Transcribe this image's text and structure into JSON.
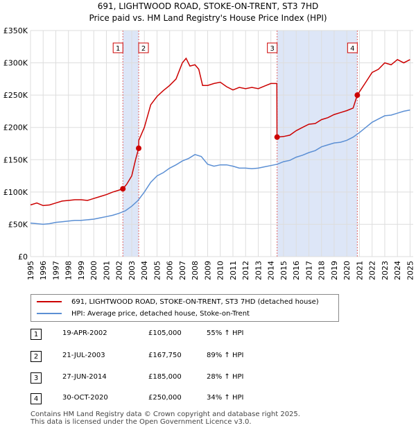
{
  "title": {
    "line1": "691, LIGHTWOOD ROAD, STOKE-ON-TRENT, ST3 7HD",
    "line2": "Price paid vs. HM Land Registry's House Price Index (HPI)"
  },
  "chart_data": {
    "type": "line",
    "xlim": [
      1995,
      2025.25
    ],
    "ylim": [
      0,
      350000
    ],
    "y_ticks": [
      {
        "value": 0,
        "label": "£0"
      },
      {
        "value": 50000,
        "label": "£50K"
      },
      {
        "value": 100000,
        "label": "£100K"
      },
      {
        "value": 150000,
        "label": "£150K"
      },
      {
        "value": 200000,
        "label": "£200K"
      },
      {
        "value": 250000,
        "label": "£250K"
      },
      {
        "value": 300000,
        "label": "£300K"
      },
      {
        "value": 350000,
        "label": "£350K"
      }
    ],
    "x_ticks": [
      "1995",
      "1996",
      "1997",
      "1998",
      "1999",
      "2000",
      "2001",
      "2002",
      "2003",
      "2004",
      "2005",
      "2006",
      "2007",
      "2008",
      "2009",
      "2010",
      "2011",
      "2012",
      "2013",
      "2014",
      "2015",
      "2016",
      "2017",
      "2018",
      "2019",
      "2020",
      "2021",
      "2022",
      "2023",
      "2024",
      "2025"
    ],
    "grid": true,
    "series": [
      {
        "name": "691, LIGHTWOOD ROAD, STOKE-ON-TRENT, ST3 7HD (detached house)",
        "color": "#cc0000",
        "x": [
          1995.0,
          1995.5,
          1996.0,
          1996.5,
          1997.0,
          1997.5,
          1998.0,
          1998.5,
          1999.0,
          1999.5,
          2000.0,
          2000.5,
          2001.0,
          2001.5,
          2002.0,
          2002.3,
          2002.6,
          2003.0,
          2003.3,
          2003.55,
          2003.56,
          2004.0,
          2004.5,
          2005.0,
          2005.5,
          2006.0,
          2006.5,
          2007.0,
          2007.3,
          2007.6,
          2008.0,
          2008.3,
          2008.6,
          2009.0,
          2009.5,
          2010.0,
          2010.5,
          2011.0,
          2011.5,
          2012.0,
          2012.5,
          2013.0,
          2013.5,
          2014.0,
          2014.47,
          2014.48,
          2015.0,
          2015.5,
          2016.0,
          2016.5,
          2017.0,
          2017.5,
          2018.0,
          2018.5,
          2019.0,
          2019.5,
          2020.0,
          2020.5,
          2020.83,
          2021.0,
          2021.5,
          2022.0,
          2022.5,
          2023.0,
          2023.5,
          2024.0,
          2024.5,
          2025.0
        ],
        "values": [
          80000,
          83000,
          79000,
          80000,
          83000,
          86000,
          87000,
          88000,
          88000,
          87000,
          90000,
          93000,
          96000,
          100000,
          103000,
          105000,
          112000,
          125000,
          150000,
          167750,
          180000,
          200000,
          235000,
          248000,
          257000,
          265000,
          275000,
          300000,
          307000,
          295000,
          297000,
          290000,
          265000,
          265000,
          268000,
          270000,
          263000,
          258000,
          262000,
          260000,
          262000,
          260000,
          264000,
          268000,
          268000,
          185000,
          186000,
          188000,
          195000,
          200000,
          205000,
          206000,
          212000,
          215000,
          220000,
          223000,
          226000,
          230000,
          250000,
          255000,
          270000,
          285000,
          290000,
          300000,
          297000,
          305000,
          300000,
          305000
        ]
      },
      {
        "name": "HPI: Average price, detached house, Stoke-on-Trent",
        "color": "#5b8fd4",
        "x": [
          1995.0,
          1995.5,
          1996.0,
          1996.5,
          1997.0,
          1997.5,
          1998.0,
          1998.5,
          1999.0,
          1999.5,
          2000.0,
          2000.5,
          2001.0,
          2001.5,
          2002.0,
          2002.5,
          2003.0,
          2003.5,
          2004.0,
          2004.5,
          2005.0,
          2005.5,
          2006.0,
          2006.5,
          2007.0,
          2007.5,
          2008.0,
          2008.5,
          2009.0,
          2009.5,
          2010.0,
          2010.5,
          2011.0,
          2011.5,
          2012.0,
          2012.5,
          2013.0,
          2013.5,
          2014.0,
          2014.5,
          2015.0,
          2015.5,
          2016.0,
          2016.5,
          2017.0,
          2017.5,
          2018.0,
          2018.5,
          2019.0,
          2019.5,
          2020.0,
          2020.5,
          2021.0,
          2021.5,
          2022.0,
          2022.5,
          2023.0,
          2023.5,
          2024.0,
          2024.5,
          2025.0
        ],
        "values": [
          52000,
          51000,
          50000,
          51000,
          53000,
          54000,
          55000,
          56000,
          56000,
          57000,
          58000,
          60000,
          62000,
          64000,
          67000,
          71000,
          78000,
          87000,
          100000,
          115000,
          125000,
          130000,
          137000,
          142000,
          148000,
          152000,
          158000,
          155000,
          143000,
          140000,
          142000,
          142000,
          140000,
          137000,
          137000,
          136000,
          137000,
          139000,
          141000,
          143000,
          147000,
          149000,
          154000,
          157000,
          161000,
          164000,
          170000,
          173000,
          176000,
          177000,
          180000,
          185000,
          192000,
          200000,
          208000,
          213000,
          218000,
          219000,
          222000,
          225000,
          227000
        ]
      }
    ],
    "sales": [
      {
        "n": "1",
        "x": 2002.3,
        "value": 105000
      },
      {
        "n": "2",
        "x": 2003.55,
        "value": 167750
      },
      {
        "n": "3",
        "x": 2014.49,
        "value": 185000
      },
      {
        "n": "4",
        "x": 2020.83,
        "value": 250000
      }
    ],
    "shaded_spans": [
      [
        2002.3,
        2003.55
      ],
      [
        2014.49,
        2020.83
      ]
    ]
  },
  "legend": {
    "property_label": "691, LIGHTWOOD ROAD, STOKE-ON-TRENT, ST3 7HD (detached house)",
    "hpi_label": "HPI: Average price, detached house, Stoke-on-Trent",
    "property_color": "#cc0000",
    "hpi_color": "#5b8fd4"
  },
  "transactions": [
    {
      "n": "1",
      "date": "19-APR-2002",
      "price": "£105,000",
      "hpi": "55% ↑ HPI"
    },
    {
      "n": "2",
      "date": "21-JUL-2003",
      "price": "£167,750",
      "hpi": "89% ↑ HPI"
    },
    {
      "n": "3",
      "date": "27-JUN-2014",
      "price": "£185,000",
      "hpi": "28% ↑ HPI"
    },
    {
      "n": "4",
      "date": "30-OCT-2020",
      "price": "£250,000",
      "hpi": "34% ↑ HPI"
    }
  ],
  "footer": {
    "line1": "Contains HM Land Registry data © Crown copyright and database right 2025.",
    "line2": "This data is licensed under the Open Government Licence v3.0."
  }
}
